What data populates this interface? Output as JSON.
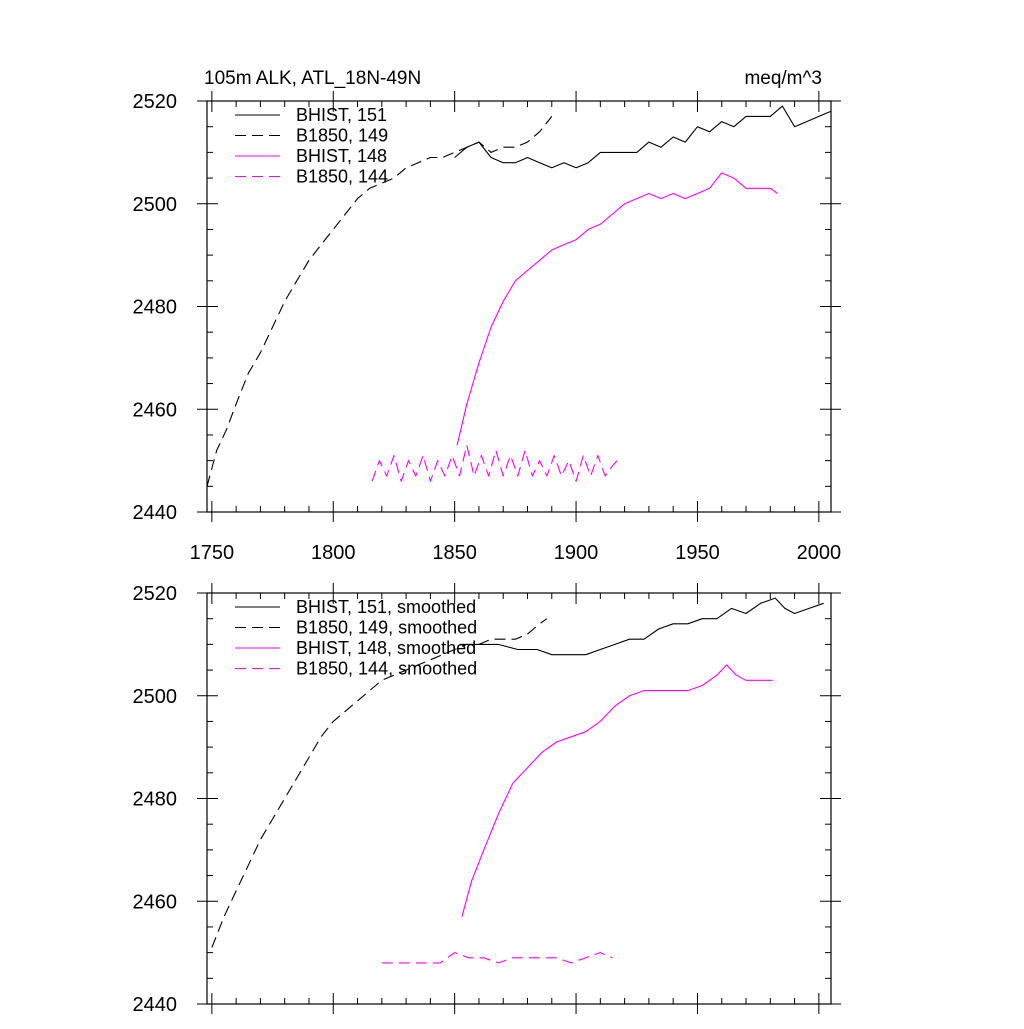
{
  "header": {
    "title": "105m ALK, ATL_18N-49N",
    "units": "meq/m^3"
  },
  "colors": {
    "BHIST": "#000000",
    "B1850": "#ff00ff"
  },
  "chart_data": [
    {
      "type": "line",
      "title": "105m ALK, ATL_18N-49N",
      "units_label": "meq/m^3",
      "xlim": [
        1748,
        2005
      ],
      "ylim": [
        2440,
        2520
      ],
      "xticks": [
        1750,
        1800,
        1850,
        1900,
        1950,
        2000
      ],
      "yticks": [
        2440,
        2460,
        2480,
        2500,
        2520
      ],
      "grid": false,
      "legend_position": "top-left",
      "series": [
        {
          "name": "BHIST, 151",
          "color": "#000000",
          "dash": "solid",
          "x": [
            1850,
            1855,
            1860,
            1865,
            1870,
            1875,
            1880,
            1885,
            1890,
            1895,
            1900,
            1905,
            1910,
            1915,
            1920,
            1925,
            1930,
            1935,
            1940,
            1945,
            1950,
            1955,
            1960,
            1965,
            1970,
            1975,
            1980,
            1985,
            1990,
            1995,
            2000,
            2005
          ],
          "y": [
            2509,
            2511,
            2512,
            2509,
            2508,
            2508,
            2509,
            2508,
            2507,
            2508,
            2507,
            2508,
            2510,
            2510,
            2510,
            2510,
            2512,
            2511,
            2513,
            2512,
            2515,
            2514,
            2516,
            2515,
            2517,
            2517,
            2517,
            2519,
            2515,
            2516,
            2517,
            2518
          ]
        },
        {
          "name": "B1850, 149",
          "color": "#000000",
          "dash": "dashed",
          "x": [
            1748,
            1752,
            1756,
            1760,
            1765,
            1770,
            1775,
            1780,
            1785,
            1790,
            1795,
            1800,
            1805,
            1810,
            1815,
            1820,
            1825,
            1830,
            1835,
            1840,
            1845,
            1850,
            1855,
            1860,
            1865,
            1870,
            1875,
            1880,
            1885,
            1890
          ],
          "y": [
            2445,
            2452,
            2456,
            2461,
            2467,
            2471,
            2476,
            2481,
            2485,
            2489,
            2492,
            2495,
            2498,
            2501,
            2503,
            2504,
            2505,
            2507,
            2508,
            2509,
            2509,
            2510,
            2511,
            2512,
            2510,
            2511,
            2511,
            2512,
            2514,
            2517
          ]
        },
        {
          "name": "BHIST, 148",
          "color": "#ff00ff",
          "dash": "solid",
          "x": [
            1851,
            1855,
            1860,
            1865,
            1870,
            1875,
            1880,
            1885,
            1890,
            1895,
            1900,
            1905,
            1910,
            1915,
            1920,
            1925,
            1930,
            1935,
            1940,
            1945,
            1950,
            1955,
            1960,
            1965,
            1970,
            1975,
            1980,
            1983
          ],
          "y": [
            2453,
            2461,
            2469,
            2476,
            2481,
            2485,
            2487,
            2489,
            2491,
            2492,
            2493,
            2495,
            2496,
            2498,
            2500,
            2501,
            2502,
            2501,
            2502,
            2501,
            2502,
            2503,
            2506,
            2505,
            2503,
            2503,
            2503,
            2502
          ]
        },
        {
          "name": "B1850, 144",
          "color": "#ff00ff",
          "dash": "dashed",
          "x": [
            1816,
            1819,
            1822,
            1825,
            1828,
            1831,
            1834,
            1837,
            1840,
            1843,
            1846,
            1849,
            1852,
            1855,
            1858,
            1861,
            1864,
            1867,
            1870,
            1873,
            1876,
            1879,
            1882,
            1885,
            1888,
            1891,
            1894,
            1897,
            1900,
            1903,
            1906,
            1909,
            1912,
            1915,
            1917
          ],
          "y": [
            2446,
            2450,
            2447,
            2451,
            2446,
            2450,
            2447,
            2451,
            2446,
            2450,
            2447,
            2451,
            2447,
            2453,
            2447,
            2451,
            2447,
            2452,
            2447,
            2451,
            2447,
            2452,
            2447,
            2450,
            2447,
            2451,
            2447,
            2450,
            2446,
            2451,
            2447,
            2451,
            2447,
            2449,
            2450
          ]
        }
      ]
    },
    {
      "type": "line",
      "title": "",
      "xlim": [
        1748,
        2005
      ],
      "ylim": [
        2440,
        2520
      ],
      "xticks": [
        1750,
        1800,
        1850,
        1900,
        1950,
        2000
      ],
      "yticks": [
        2440,
        2460,
        2480,
        2500,
        2520
      ],
      "grid": false,
      "legend_position": "top-left",
      "series": [
        {
          "name": "BHIST, 151, smoothed",
          "color": "#000000",
          "dash": "solid",
          "x": [
            1852,
            1860,
            1868,
            1876,
            1884,
            1890,
            1896,
            1904,
            1910,
            1916,
            1922,
            1928,
            1934,
            1940,
            1946,
            1952,
            1958,
            1964,
            1970,
            1976,
            1982,
            1986,
            1990,
            1996,
            2002
          ],
          "y": [
            2510,
            2510,
            2510,
            2509,
            2509,
            2508,
            2508,
            2508,
            2509,
            2510,
            2511,
            2511,
            2513,
            2514,
            2514,
            2515,
            2515,
            2517,
            2516,
            2518,
            2519,
            2517,
            2516,
            2517,
            2518
          ]
        },
        {
          "name": "B1850, 149, smoothed",
          "color": "#000000",
          "dash": "dashed",
          "x": [
            1750,
            1755,
            1760,
            1765,
            1770,
            1775,
            1780,
            1785,
            1790,
            1795,
            1800,
            1805,
            1810,
            1815,
            1820,
            1825,
            1830,
            1835,
            1840,
            1845,
            1850,
            1855,
            1860,
            1865,
            1870,
            1875,
            1880,
            1885,
            1888
          ],
          "y": [
            2451,
            2457,
            2462,
            2467,
            2472,
            2476,
            2480,
            2484,
            2488,
            2492,
            2495,
            2497,
            2499,
            2501,
            2503,
            2504,
            2505,
            2506,
            2507,
            2508,
            2509,
            2510,
            2510,
            2511,
            2511,
            2511,
            2512,
            2514,
            2515
          ]
        },
        {
          "name": "BHIST, 148, smoothed",
          "color": "#ff00ff",
          "dash": "solid",
          "x": [
            1853,
            1857,
            1862,
            1868,
            1874,
            1880,
            1886,
            1892,
            1898,
            1904,
            1910,
            1916,
            1922,
            1928,
            1934,
            1940,
            1946,
            1952,
            1958,
            1962,
            1966,
            1970,
            1976,
            1981
          ],
          "y": [
            2457,
            2464,
            2470,
            2477,
            2483,
            2486,
            2489,
            2491,
            2492,
            2493,
            2495,
            2498,
            2500,
            2501,
            2501,
            2501,
            2501,
            2502,
            2504,
            2506,
            2504,
            2503,
            2503,
            2503
          ]
        },
        {
          "name": "B1850, 144, smoothed",
          "color": "#ff00ff",
          "dash": "dashed",
          "x": [
            1820,
            1826,
            1832,
            1838,
            1844,
            1850,
            1856,
            1862,
            1868,
            1874,
            1880,
            1886,
            1892,
            1898,
            1904,
            1910,
            1915
          ],
          "y": [
            2448,
            2448,
            2448,
            2448,
            2448,
            2450,
            2449,
            2449,
            2448,
            2449,
            2449,
            2449,
            2449,
            2448,
            2449,
            2450,
            2449
          ]
        }
      ]
    }
  ]
}
